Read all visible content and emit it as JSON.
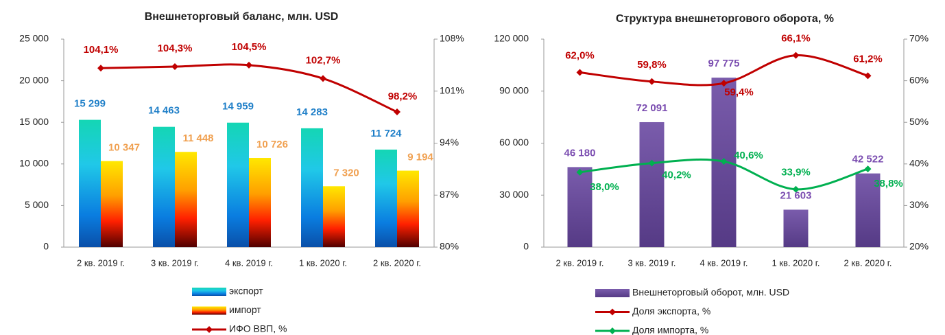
{
  "chart_data": [
    {
      "type": "bar",
      "title": "Внешнеторговый баланс, млн. USD",
      "categories": [
        "2 кв. 2019 г.",
        "3 кв. 2019 г.",
        "4 кв. 2019 г.",
        "1 кв. 2020 г.",
        "2 кв. 2020 г."
      ],
      "series": [
        {
          "name": "экспорт",
          "type": "bar",
          "color": "#14d6b4",
          "values": [
            15299,
            14463,
            14959,
            14283,
            11724
          ],
          "value_labels": [
            "15 299",
            "14 463",
            "14 959",
            "14 283",
            "11 724"
          ]
        },
        {
          "name": "импорт",
          "type": "bar",
          "color": "#ffe800",
          "values": [
            10347,
            11448,
            10726,
            7320,
            9194
          ],
          "value_labels": [
            "10 347",
            "11 448",
            "10 726",
            "7 320",
            "9 194"
          ]
        },
        {
          "name": "ИФО ВВП, %",
          "type": "line",
          "axis": "y2",
          "color": "#c00000",
          "values": [
            104.1,
            104.3,
            104.5,
            102.7,
            98.2
          ],
          "value_labels": [
            "104,1%",
            "104,3%",
            "104,5%",
            "102,7%",
            "98,2%"
          ]
        }
      ],
      "ylim": [
        0,
        25000
      ],
      "yticks": [
        0,
        {
          "value": 5000,
          "label": "5 000"
        },
        {
          "value": 10000,
          "label": "10 000"
        },
        {
          "value": 15000,
          "label": "15 000"
        },
        {
          "value": 20000,
          "label": "20 000"
        },
        {
          "value": 25000,
          "label": "25 000"
        }
      ],
      "y2lim": [
        80,
        108
      ],
      "y2ticks": [
        {
          "value": 80,
          "label": "80%"
        },
        {
          "value": 87,
          "label": "87%"
        },
        {
          "value": 94,
          "label": "94%"
        },
        {
          "value": 101,
          "label": "101%"
        },
        {
          "value": 108,
          "label": "108%"
        }
      ]
    },
    {
      "type": "bar",
      "title": "Структура внешнеторгового оборота, %",
      "categories": [
        "2 кв. 2019 г.",
        "3 кв. 2019 г.",
        "4 кв. 2019 г.",
        "1 кв. 2020 г.",
        "2 кв. 2020 г."
      ],
      "series": [
        {
          "name": "Внешнеторговый оборот, млн. USD",
          "type": "bar",
          "color": "#6a4c9c",
          "values": [
            46180,
            72091,
            97775,
            21603,
            42522
          ],
          "value_labels": [
            "46 180",
            "72 091",
            "97 775",
            "21 603",
            "42 522"
          ]
        },
        {
          "name": "Доля экспорта, %",
          "type": "line",
          "axis": "y2",
          "color": "#c00000",
          "values": [
            62.0,
            59.8,
            59.4,
            66.1,
            61.2
          ],
          "value_labels": [
            "62,0%",
            "59,8%",
            "59,4%",
            "66,1%",
            "61,2%"
          ]
        },
        {
          "name": "Доля импорта, %",
          "type": "line",
          "axis": "y2",
          "color": "#00b050",
          "values": [
            38.0,
            40.2,
            40.6,
            33.9,
            38.8
          ],
          "value_labels": [
            "38,0%",
            "40,2%",
            "40,6%",
            "33,9%",
            "38,8%"
          ]
        }
      ],
      "ylim": [
        0,
        120000
      ],
      "yticks": [
        0,
        {
          "value": 30000,
          "label": "30 000"
        },
        {
          "value": 60000,
          "label": "60 000"
        },
        {
          "value": 90000,
          "label": "90 000"
        },
        {
          "value": 120000,
          "label": "120 000"
        }
      ],
      "y2lim": [
        20,
        70
      ],
      "y2ticks": [
        {
          "value": 20,
          "label": "20%"
        },
        {
          "value": 30,
          "label": "30%"
        },
        {
          "value": 40,
          "label": "40%"
        },
        {
          "value": 50,
          "label": "50%"
        },
        {
          "value": 60,
          "label": "60%"
        },
        {
          "value": 70,
          "label": "70%"
        }
      ]
    }
  ]
}
